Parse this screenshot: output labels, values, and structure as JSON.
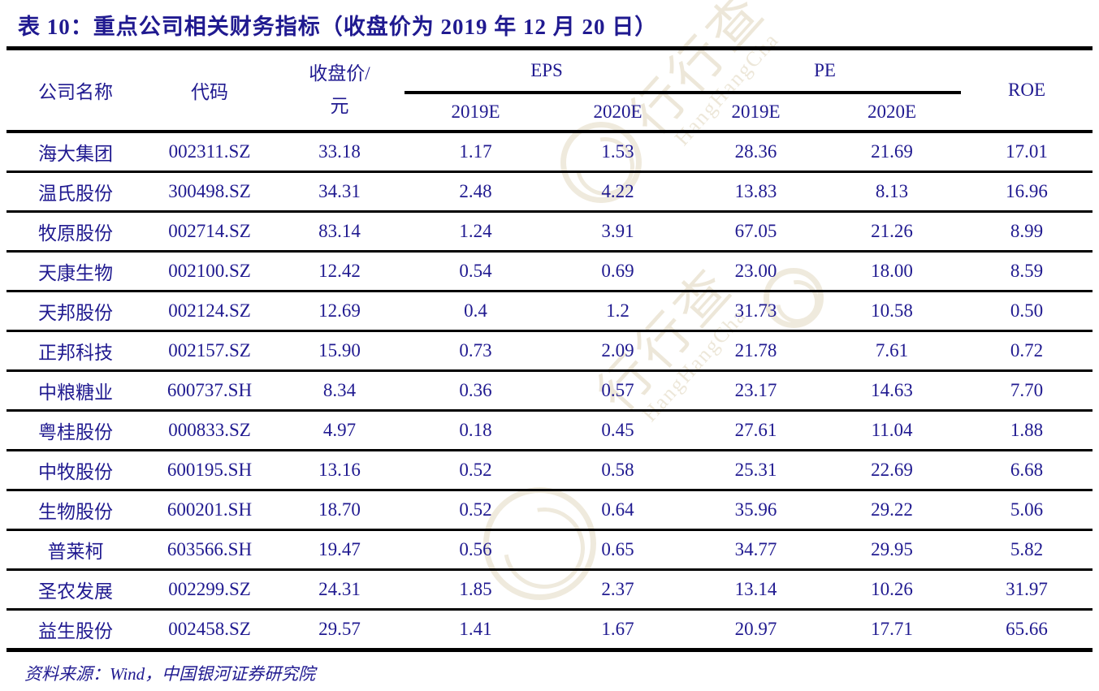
{
  "title": "表 10：重点公司相关财务指标（收盘价为 2019 年 12 月 20 日）",
  "table": {
    "headers": {
      "company": "公司名称",
      "code": "代码",
      "close_line1": "收盘价/",
      "close_line2": "元",
      "eps": "EPS",
      "pe": "PE",
      "roe": "ROE",
      "eps_2019": "2019E",
      "eps_2020": "2020E",
      "pe_2019": "2019E",
      "pe_2020": "2020E"
    },
    "rows": [
      [
        "海大集团",
        "002311.SZ",
        "33.18",
        "1.17",
        "1.53",
        "28.36",
        "21.69",
        "17.01"
      ],
      [
        "温氏股份",
        "300498.SZ",
        "34.31",
        "2.48",
        "4.22",
        "13.83",
        "8.13",
        "16.96"
      ],
      [
        "牧原股份",
        "002714.SZ",
        "83.14",
        "1.24",
        "3.91",
        "67.05",
        "21.26",
        "8.99"
      ],
      [
        "天康生物",
        "002100.SZ",
        "12.42",
        "0.54",
        "0.69",
        "23.00",
        "18.00",
        "8.59"
      ],
      [
        "天邦股份",
        "002124.SZ",
        "12.69",
        "0.4",
        "1.2",
        "31.73",
        "10.58",
        "0.50"
      ],
      [
        "正邦科技",
        "002157.SZ",
        "15.90",
        "0.73",
        "2.09",
        "21.78",
        "7.61",
        "0.72"
      ],
      [
        "中粮糖业",
        "600737.SH",
        "8.34",
        "0.36",
        "0.57",
        "23.17",
        "14.63",
        "7.70"
      ],
      [
        "粤桂股份",
        "000833.SZ",
        "4.97",
        "0.18",
        "0.45",
        "27.61",
        "11.04",
        "1.88"
      ],
      [
        "中牧股份",
        "600195.SH",
        "13.16",
        "0.52",
        "0.58",
        "25.31",
        "22.69",
        "6.68"
      ],
      [
        "生物股份",
        "600201.SH",
        "18.70",
        "0.52",
        "0.64",
        "35.96",
        "29.22",
        "5.06"
      ],
      [
        "普莱柯",
        "603566.SH",
        "19.47",
        "0.56",
        "0.65",
        "34.77",
        "29.95",
        "5.82"
      ],
      [
        "圣农发展",
        "002299.SZ",
        "24.31",
        "1.85",
        "2.37",
        "13.14",
        "10.26",
        "31.97"
      ],
      [
        "益生股份",
        "002458.SZ",
        "29.57",
        "1.41",
        "1.67",
        "20.97",
        "17.71",
        "65.66"
      ]
    ]
  },
  "footer": {
    "source": "资料来源：Wind，中国银河证券研究院"
  },
  "watermark": {
    "cn": "行行查",
    "en": "HangHangCha"
  },
  "colors": {
    "text": "#201a90",
    "rule": "#000000",
    "watermark": "#e9e2d0"
  }
}
